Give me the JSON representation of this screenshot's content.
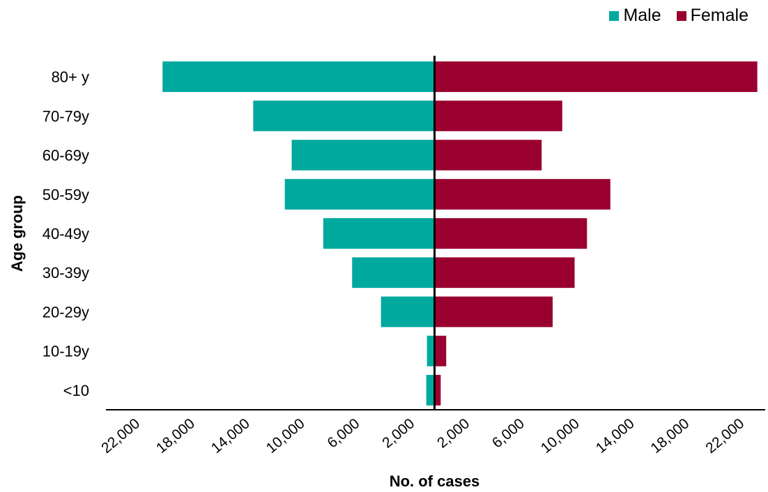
{
  "chart_data": {
    "type": "bar",
    "orientation": "horizontal",
    "layout": "population-pyramid",
    "title": "",
    "xlabel": "No. of cases",
    "ylabel": "Age group",
    "categories": [
      "80+ y",
      "70-79y",
      "60-69y",
      "50-59y",
      "40-49y",
      "30-39y",
      "20-29y",
      "10-19y",
      "<10"
    ],
    "series": [
      {
        "name": "Male",
        "color": "#00a99d",
        "side": "left",
        "values": [
          19800,
          13200,
          10400,
          10900,
          8100,
          6000,
          3900,
          550,
          600
        ]
      },
      {
        "name": "Female",
        "color": "#990030",
        "side": "right",
        "values": [
          23500,
          9300,
          7800,
          12800,
          11100,
          10200,
          8600,
          850,
          450
        ]
      }
    ],
    "xlim": [
      -24000,
      24000
    ],
    "xticks": [
      -22000,
      -18000,
      -14000,
      -10000,
      -6000,
      -2000,
      2000,
      6000,
      10000,
      14000,
      18000,
      22000
    ],
    "xtick_labels": [
      "22,000",
      "18,000",
      "14,000",
      "10,000",
      "6,000",
      "2,000",
      "2,000",
      "6,000",
      "10,000",
      "14,000",
      "18,000",
      "22,000"
    ],
    "grid": false,
    "legend_position": "top-right"
  }
}
